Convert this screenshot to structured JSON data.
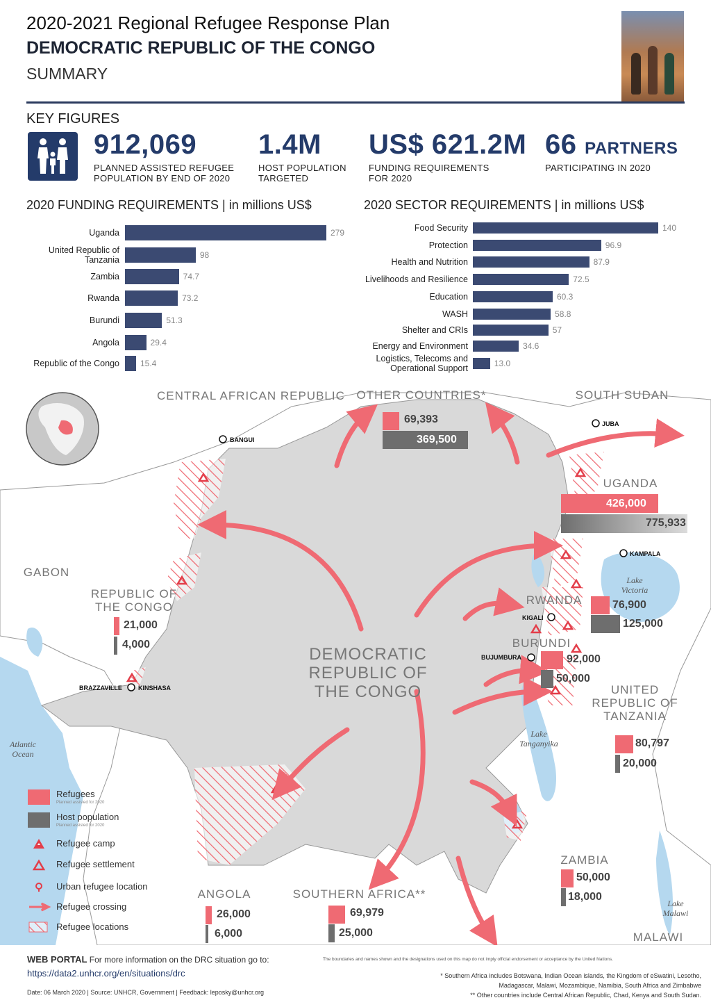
{
  "header": {
    "title": "2020-2021 Regional Refugee Response Plan",
    "country": "DEMOCRATIC REPUBLIC OF THE CONGO",
    "subtitle": "SUMMARY"
  },
  "key_figures": {
    "title": "KEY FIGURES",
    "items": [
      {
        "value": "912,069",
        "label_1": "PLANNED ASSISTED REFUGEE",
        "label_2": "POPULATION BY END OF 2020"
      },
      {
        "value": "1.4M",
        "label_1": "HOST POPULATION",
        "label_2": "TARGETED"
      },
      {
        "value": "US$ 621.2M",
        "label_1": "FUNDING REQUIREMENTS",
        "label_2": "FOR 2020"
      },
      {
        "value": "66",
        "value_suffix": "PARTNERS",
        "label_1": "PARTICIPATING IN 2020",
        "label_2": ""
      }
    ]
  },
  "chart_data": [
    {
      "type": "bar",
      "orientation": "horizontal",
      "title": "2020 FUNDING REQUIREMENTS | in millions US$",
      "categories": [
        "Uganda",
        "United Republic of Tanzania",
        "Zambia",
        "Rwanda",
        "Burundi",
        "Angola",
        "Republic of the Congo"
      ],
      "values": [
        279,
        98,
        74.7,
        73.2,
        51.3,
        29.4,
        15.4
      ],
      "value_labels": [
        "279",
        "98",
        "74.7",
        "73.2",
        "51.3",
        "29.4",
        "15.4"
      ],
      "color": "#3b4a72"
    },
    {
      "type": "bar",
      "orientation": "horizontal",
      "title": "2020 SECTOR REQUIREMENTS | in millions US$",
      "categories": [
        "Food Security",
        "Protection",
        "Health and Nutrition",
        "Livelihoods and Resilience",
        "Education",
        "WASH",
        "Shelter and CRIs",
        "Energy and Environment",
        "Logistics, Telecoms and Operational Support"
      ],
      "values": [
        140,
        96.9,
        87.9,
        72.5,
        60.3,
        58.8,
        57,
        34.6,
        13.0
      ],
      "value_labels": [
        "140",
        "96.9",
        "87.9",
        "72.5",
        "60.3",
        "58.8",
        "57",
        "34.6",
        "13.0"
      ],
      "color": "#3b4a72"
    }
  ],
  "map": {
    "countries": {
      "car": "CENTRAL AFRICAN REPUBLIC",
      "other": "OTHER COUNTRIES*",
      "south_sudan": "SOUTH SUDAN",
      "uganda": "UGANDA",
      "gabon": "GABON",
      "roc": "REPUBLIC OF THE CONGO",
      "rwanda": "RWANDA",
      "burundi": "BURUNDI",
      "drc": "DEMOCRATIC REPUBLIC OF THE CONGO",
      "tanzania": "UNITED REPUBLIC OF TANZANIA",
      "zambia": "ZAMBIA",
      "angola": "ANGOLA",
      "southern_africa": "SOUTHERN AFRICA**",
      "malawi": "MALAWI"
    },
    "populations": {
      "other": {
        "refugees": "69,393",
        "host": "369,500",
        "refugee_value": 69393,
        "host_value": 369500
      },
      "uganda": {
        "refugees": "426,000",
        "host": "775,933",
        "refugee_value": 426000,
        "host_value": 775933
      },
      "roc": {
        "refugees": "21,000",
        "host": "4,000",
        "refugee_value": 21000,
        "host_value": 4000
      },
      "rwanda": {
        "refugees": "76,900",
        "host": "125,000",
        "refugee_value": 76900,
        "host_value": 125000
      },
      "burundi": {
        "refugees": "92,000",
        "host": "50,000",
        "refugee_value": 92000,
        "host_value": 50000
      },
      "tanzania": {
        "refugees": "80,797",
        "host": "20,000",
        "refugee_value": 80797,
        "host_value": 20000
      },
      "zambia": {
        "refugees": "50,000",
        "host": "18,000",
        "refugee_value": 50000,
        "host_value": 18000
      },
      "angola": {
        "refugees": "26,000",
        "host": "6,000",
        "refugee_value": 26000,
        "host_value": 6000
      },
      "southern_africa": {
        "refugees": "69,979",
        "host": "25,000",
        "refugee_value": 69979,
        "host_value": 25000
      }
    },
    "cities": {
      "bangui": "BANGUI",
      "juba": "JUBA",
      "kampala": "KAMPALA",
      "kigali": "KIGALI",
      "bujumbura": "BUJUMBURA",
      "brazzaville": "BRAZZAVILLE",
      "kinshasa": "KINSHASA"
    },
    "water": {
      "lake_victoria": "Lake Victoria",
      "lake_tanganyika": "Lake Tanganyika",
      "lake_malawi": "Lake Malawi",
      "atlantic": "Atlantic Ocean"
    },
    "colors": {
      "refugee": "#ef6a73",
      "host": "#6e6e6e",
      "land": "#d9d9d9",
      "water": "#b5d8ef",
      "arrow": "#ef6a73"
    }
  },
  "legend": {
    "refugees": "Refugees",
    "refugees_sub": "Planned assisted for 2020",
    "host": "Host population",
    "host_sub": "Planned assisted for 2020",
    "camp": "Refugee camp",
    "settlement": "Refugee settlement",
    "urban": "Urban refugee location",
    "crossing": "Refugee crossing",
    "locations": "Refugee locations"
  },
  "footer": {
    "portal_label": "WEB PORTAL",
    "portal_text": "For more information on the DRC situation go to:",
    "url": "https://data2.unhcr.org/en/situations/drc",
    "date_line": "Date: 06 March 2020 | Source: UNHCR, Government | Feedback: leposky@unhcr.org",
    "disclaimer": "The boundaries and names shown and the designations used on this map do not imply official endorsement or acceptance by the United Nations.",
    "note1": "* Southern Africa includes Botswana, Indian Ocean islands, the Kingdom of eSwatini, Lesotho,",
    "note2": "Madagascar, Malawi, Mozambique, Namibia, South Africa and Zimbabwe",
    "note3": "** Other countries include Central African Republic, Chad, Kenya and South Sudan."
  }
}
